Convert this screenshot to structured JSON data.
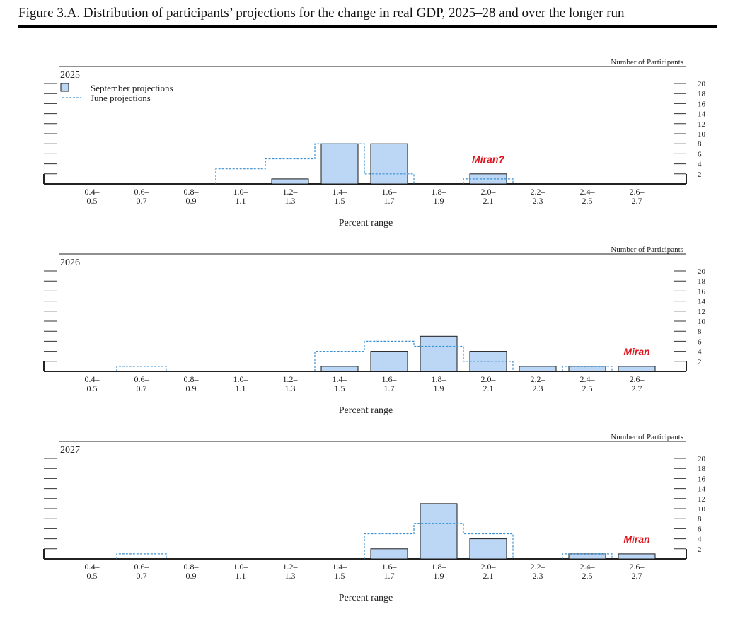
{
  "figure_title": "Figure 3.A. Distribution of participants’ projections for the change in real GDP, 2025–28 and over the longer run",
  "colors": {
    "bar_fill": "#bcd7f5",
    "bar_stroke": "#1a1a1a",
    "june_line": "#3a8fd0",
    "annotation": "#e0141e"
  },
  "chart_data": [
    {
      "type": "bar",
      "title": "2025",
      "xlabel": "Percent range",
      "ylabel": "Number of Participants",
      "ylim": [
        0,
        20
      ],
      "yticks": [
        "2",
        "4",
        "6",
        "8",
        "10",
        "12",
        "14",
        "16",
        "18",
        "20"
      ],
      "categories": [
        [
          "0.4–",
          "0.5"
        ],
        [
          "0.6–",
          "0.7"
        ],
        [
          "0.8–",
          "0.9"
        ],
        [
          "1.0–",
          "1.1"
        ],
        [
          "1.2–",
          "1.3"
        ],
        [
          "1.4–",
          "1.5"
        ],
        [
          "1.6–",
          "1.7"
        ],
        [
          "1.8–",
          "1.9"
        ],
        [
          "2.0–",
          "2.1"
        ],
        [
          "2.2–",
          "2.3"
        ],
        [
          "2.4–",
          "2.5"
        ],
        [
          "2.6–",
          "2.7"
        ]
      ],
      "legend": {
        "september": "September projections",
        "june": "June projections"
      },
      "series": [
        {
          "name": "September projections",
          "values": [
            0,
            0,
            0,
            0,
            1,
            8,
            8,
            0,
            2,
            0,
            0,
            0
          ]
        },
        {
          "name": "June projections",
          "values": [
            0,
            0,
            0,
            3,
            5,
            8,
            2,
            0,
            1,
            0,
            0,
            0
          ]
        }
      ],
      "annotation": {
        "text": "Miran?",
        "category_index": 8
      }
    },
    {
      "type": "bar",
      "title": "2026",
      "xlabel": "Percent range",
      "ylabel": "Number of Participants",
      "ylim": [
        0,
        20
      ],
      "yticks": [
        "2",
        "4",
        "6",
        "8",
        "10",
        "12",
        "14",
        "16",
        "18",
        "20"
      ],
      "categories": [
        [
          "0.4–",
          "0.5"
        ],
        [
          "0.6–",
          "0.7"
        ],
        [
          "0.8–",
          "0.9"
        ],
        [
          "1.0–",
          "1.1"
        ],
        [
          "1.2–",
          "1.3"
        ],
        [
          "1.4–",
          "1.5"
        ],
        [
          "1.6–",
          "1.7"
        ],
        [
          "1.8–",
          "1.9"
        ],
        [
          "2.0–",
          "2.1"
        ],
        [
          "2.2–",
          "2.3"
        ],
        [
          "2.4–",
          "2.5"
        ],
        [
          "2.6–",
          "2.7"
        ]
      ],
      "series": [
        {
          "name": "September projections",
          "values": [
            0,
            0,
            0,
            0,
            0,
            1,
            4,
            7,
            4,
            1,
            1,
            1
          ]
        },
        {
          "name": "June projections",
          "values": [
            0,
            1,
            0,
            0,
            0,
            4,
            6,
            5,
            2,
            0,
            1,
            0
          ]
        }
      ],
      "annotation": {
        "text": "Miran",
        "category_index": 11
      }
    },
    {
      "type": "bar",
      "title": "2027",
      "xlabel": "Percent range",
      "ylabel": "Number of Participants",
      "ylim": [
        0,
        20
      ],
      "yticks": [
        "2",
        "4",
        "6",
        "8",
        "10",
        "12",
        "14",
        "16",
        "18",
        "20"
      ],
      "categories": [
        [
          "0.4–",
          "0.5"
        ],
        [
          "0.6–",
          "0.7"
        ],
        [
          "0.8–",
          "0.9"
        ],
        [
          "1.0–",
          "1.1"
        ],
        [
          "1.2–",
          "1.3"
        ],
        [
          "1.4–",
          "1.5"
        ],
        [
          "1.6–",
          "1.7"
        ],
        [
          "1.8–",
          "1.9"
        ],
        [
          "2.0–",
          "2.1"
        ],
        [
          "2.2–",
          "2.3"
        ],
        [
          "2.4–",
          "2.5"
        ],
        [
          "2.6–",
          "2.7"
        ]
      ],
      "series": [
        {
          "name": "September projections",
          "values": [
            0,
            0,
            0,
            0,
            0,
            0,
            2,
            11,
            4,
            0,
            1,
            1
          ]
        },
        {
          "name": "June projections",
          "values": [
            0,
            1,
            0,
            0,
            0,
            0,
            5,
            7,
            5,
            0,
            1,
            0
          ]
        }
      ],
      "annotation": {
        "text": "Miran",
        "category_index": 11
      }
    }
  ]
}
